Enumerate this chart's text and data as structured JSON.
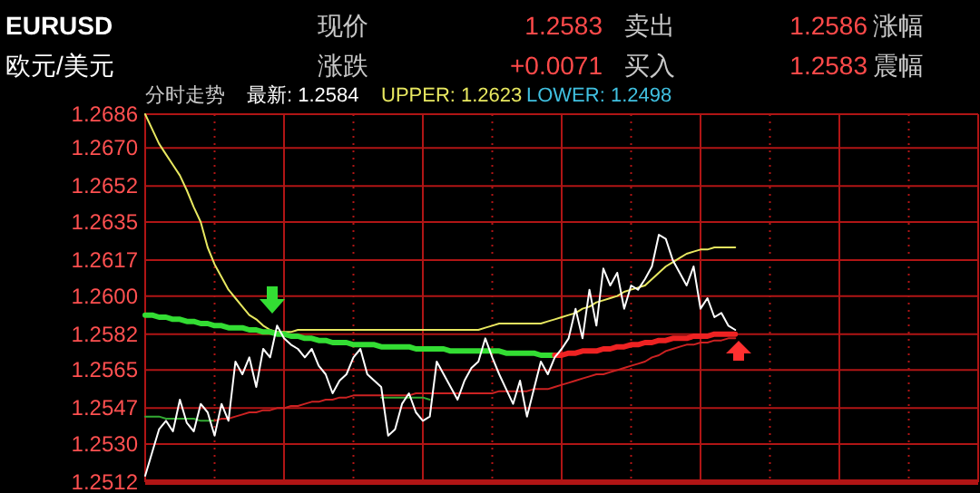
{
  "chart_data": {
    "type": "line",
    "title": "EURUSD",
    "subtitle": "欧元/美元",
    "annotations": [
      "现价",
      "1.2583",
      "卖出",
      "1.2586",
      "涨幅",
      "涨跌",
      "+0.0071",
      "买入",
      "1.2583",
      "震幅",
      "分时走势",
      "最新: 1.2584",
      "UPPER: 1.2623",
      "LOWER: 1.2498"
    ],
    "categories": [
      null,
      null,
      null,
      null,
      null,
      null,
      null,
      null,
      null,
      null,
      null,
      null,
      null,
      null,
      null,
      null,
      null,
      null,
      null,
      null,
      null,
      null,
      null,
      null,
      null,
      null,
      null,
      null,
      null,
      null,
      null,
      null,
      null,
      null,
      null,
      null,
      null,
      null,
      null,
      null,
      null,
      null,
      null,
      null,
      null,
      null,
      null,
      null,
      null,
      null,
      null,
      null,
      null,
      null,
      null,
      null,
      null,
      null,
      null,
      null,
      null,
      null,
      null,
      null,
      null,
      null,
      null,
      null,
      null,
      null,
      null,
      null,
      null,
      null,
      null,
      null,
      null,
      null,
      null,
      null,
      null,
      null,
      null,
      null,
      null,
      null,
      null,
      null,
      null,
      null,
      null,
      null,
      null,
      null,
      null,
      null,
      null,
      null,
      null,
      null,
      null,
      null,
      null,
      null,
      null,
      null,
      null,
      null,
      null,
      null,
      null,
      null,
      null,
      null,
      null,
      null,
      null,
      null,
      null,
      null,
      null
    ],
    "ylim": [
      1.2512,
      1.2686
    ],
    "yticks": [
      {
        "value": 1.2512,
        "label": "1.2512"
      },
      {
        "value": 1.253,
        "label": "1.2530"
      },
      {
        "value": 1.2547,
        "label": "1.2547"
      },
      {
        "value": 1.2565,
        "label": "1.2565"
      },
      {
        "value": 1.2582,
        "label": "1.2582"
      },
      {
        "value": 1.26,
        "label": "1.2600"
      },
      {
        "value": 1.2617,
        "label": "1.2617"
      },
      {
        "value": 1.2635,
        "label": "1.2635"
      },
      {
        "value": 1.2652,
        "label": "1.2652"
      },
      {
        "value": 1.267,
        "label": "1.2670"
      },
      {
        "value": 1.2686,
        "label": "1.2686"
      }
    ],
    "tick_labels": "y",
    "grid": true,
    "marker": "none",
    "line_style": "solid",
    "series": [
      {
        "color": "#e8e860",
        "values": [
          1.2686,
          1.2679,
          1.2672,
          1.2667,
          1.2662,
          1.2657,
          1.265,
          1.2642,
          1.2635,
          1.2623,
          1.2615,
          1.2609,
          1.2603,
          1.2599,
          1.2595,
          1.2591,
          1.2589,
          1.2586,
          1.2584,
          1.2583,
          1.2583,
          1.2583,
          1.2584,
          1.2584,
          1.2584,
          1.2584,
          1.2584,
          1.2584,
          1.2584,
          1.2584,
          1.2584,
          1.2584,
          1.2584,
          1.2584,
          1.2584,
          1.2584,
          1.2584,
          1.2584,
          1.2584,
          1.2584,
          1.2584,
          1.2584,
          1.2584,
          1.2584,
          1.2584,
          1.2584,
          1.2584,
          1.2584,
          1.2584,
          1.2585,
          1.2586,
          1.2587,
          1.2587,
          1.2587,
          1.2587,
          1.2587,
          1.2587,
          1.2587,
          1.2588,
          1.2589,
          1.259,
          1.2591,
          1.2592,
          1.2594,
          1.2595,
          1.2597,
          1.2598,
          1.2599,
          1.26,
          1.2602,
          1.2603,
          1.2604,
          1.2605,
          1.2608,
          1.2611,
          1.2614,
          1.2616,
          1.2618,
          1.262,
          1.2621,
          1.2622,
          1.2622,
          1.2623,
          1.2623,
          1.2623,
          1.2623,
          null,
          null,
          null,
          null,
          null,
          null,
          null,
          null,
          null,
          null,
          null,
          null,
          null,
          null,
          null,
          null,
          null,
          null,
          null,
          null,
          null,
          null,
          null,
          null,
          null,
          null,
          null,
          null,
          null,
          null,
          null,
          null,
          null,
          null,
          null
        ]
      },
      {
        "color": "#33aa33",
        "values": [
          1.2543,
          1.2543,
          1.2543,
          1.2542,
          1.2542,
          1.2542,
          1.2542,
          1.2542,
          1.2541,
          1.2541,
          1.2541,
          null,
          null,
          null,
          null,
          null,
          null,
          null,
          null,
          null,
          null,
          null,
          null,
          null,
          null,
          null,
          null,
          null,
          null,
          null,
          null,
          null,
          null,
          null,
          1.2552,
          1.2552,
          1.2552,
          1.2552,
          1.2552,
          1.2552,
          1.2552,
          1.2551,
          null,
          null,
          null,
          null,
          null,
          null,
          null,
          null,
          null,
          null,
          null,
          null,
          null,
          null,
          null,
          null,
          null,
          null,
          null,
          null,
          null,
          null,
          null,
          null,
          null,
          null,
          null,
          null,
          null,
          null,
          null,
          null,
          null,
          null,
          null,
          null,
          null,
          null,
          null,
          null,
          null,
          null,
          null,
          null,
          null,
          null,
          null,
          null,
          null,
          null,
          null,
          null,
          null,
          null,
          null,
          null,
          null,
          null,
          null,
          null,
          null,
          null,
          null,
          null,
          null,
          null,
          null,
          null,
          null,
          null,
          null,
          null,
          null,
          null,
          null,
          null,
          null,
          null,
          null
        ]
      },
      {
        "color": "#cc2222",
        "values": [
          null,
          null,
          null,
          null,
          null,
          null,
          null,
          null,
          null,
          null,
          1.2541,
          1.2542,
          1.2542,
          1.2543,
          1.2544,
          1.2545,
          1.2545,
          1.2546,
          1.2546,
          1.2547,
          1.2547,
          1.2548,
          1.2548,
          1.2549,
          1.255,
          1.255,
          1.2551,
          1.2551,
          1.2552,
          1.2552,
          1.2553,
          1.2553,
          1.2553,
          1.2553,
          1.2553,
          1.2553,
          1.2553,
          1.2553,
          1.2553,
          1.2554,
          1.2554,
          1.2554,
          1.2554,
          1.2554,
          1.2554,
          1.2554,
          1.2554,
          1.2554,
          1.2554,
          1.2554,
          1.2554,
          1.2555,
          1.2555,
          1.2555,
          1.2555,
          1.2555,
          1.2556,
          1.2556,
          1.2556,
          1.2557,
          1.2558,
          1.2559,
          1.256,
          1.2561,
          1.2562,
          1.2563,
          1.2563,
          1.2564,
          1.2565,
          1.2566,
          1.2567,
          1.2568,
          1.2569,
          1.2571,
          1.2572,
          1.2574,
          1.2575,
          1.2576,
          1.2577,
          1.2577,
          1.2578,
          1.2578,
          1.2579,
          1.2579,
          1.258,
          1.258,
          null,
          null,
          null,
          null,
          null,
          null,
          null,
          null,
          null,
          null,
          null,
          null,
          null,
          null,
          null,
          null,
          null,
          null,
          null,
          null,
          null,
          null,
          null,
          null,
          null,
          null,
          null,
          null,
          null,
          null,
          null,
          null,
          null,
          null,
          null
        ]
      },
      {
        "color": "#33dd33",
        "values": [
          1.2591,
          1.2591,
          1.259,
          1.259,
          1.2589,
          1.2589,
          1.2588,
          1.2588,
          1.2587,
          1.2587,
          1.2586,
          1.2586,
          1.2585,
          1.2585,
          1.2585,
          1.2584,
          1.2584,
          1.2583,
          1.2583,
          1.2582,
          1.2582,
          1.2581,
          1.2581,
          1.258,
          1.258,
          1.2579,
          1.2579,
          1.2578,
          1.2578,
          1.2578,
          1.2577,
          1.2577,
          1.2577,
          1.2577,
          1.2576,
          1.2576,
          1.2576,
          1.2576,
          1.2576,
          1.2575,
          1.2575,
          1.2575,
          1.2575,
          1.2575,
          1.2574,
          1.2574,
          1.2574,
          1.2574,
          1.2574,
          1.2574,
          1.2574,
          1.2574,
          1.2573,
          1.2573,
          1.2573,
          1.2573,
          1.2573,
          1.2572,
          1.2572,
          1.2572,
          null,
          null,
          null,
          null,
          null,
          null,
          null,
          null,
          null,
          null,
          null,
          null,
          null,
          null,
          null,
          null,
          null,
          null,
          null,
          null,
          null,
          null,
          null,
          null,
          null,
          null,
          null,
          null,
          null,
          null,
          null,
          null,
          null,
          null,
          null,
          null,
          null,
          null,
          null,
          null,
          null,
          null,
          null,
          null,
          null,
          null,
          null,
          null,
          null,
          null,
          null,
          null,
          null,
          null,
          null,
          null,
          null,
          null,
          null,
          null,
          null
        ]
      },
      {
        "color": "#ee2222",
        "values": [
          null,
          null,
          null,
          null,
          null,
          null,
          null,
          null,
          null,
          null,
          null,
          null,
          null,
          null,
          null,
          null,
          null,
          null,
          null,
          null,
          null,
          null,
          null,
          null,
          null,
          null,
          null,
          null,
          null,
          null,
          null,
          null,
          null,
          null,
          null,
          null,
          null,
          null,
          null,
          null,
          null,
          null,
          null,
          null,
          null,
          null,
          null,
          null,
          null,
          null,
          null,
          null,
          null,
          null,
          null,
          null,
          null,
          null,
          null,
          1.2572,
          1.2572,
          1.2573,
          1.2573,
          1.2574,
          1.2574,
          1.2574,
          1.2575,
          1.2575,
          1.2576,
          1.2576,
          1.2577,
          1.2577,
          1.2578,
          1.2578,
          1.2579,
          1.2579,
          1.258,
          1.258,
          1.258,
          1.2581,
          1.2581,
          1.2581,
          1.2582,
          1.2582,
          1.2582,
          1.2582,
          null,
          null,
          null,
          null,
          null,
          null,
          null,
          null,
          null,
          null,
          null,
          null,
          null,
          null,
          null,
          null,
          null,
          null,
          null,
          null,
          null,
          null,
          null,
          null,
          null,
          null,
          null,
          null,
          null,
          null,
          null,
          null,
          null,
          null,
          null
        ]
      },
      {
        "color": "#ffffff",
        "values": [
          1.2515,
          1.2526,
          1.2537,
          1.2541,
          1.2536,
          1.2551,
          1.254,
          1.2536,
          1.2549,
          1.2545,
          1.2534,
          1.2549,
          1.2541,
          1.2569,
          1.2563,
          1.2571,
          1.2557,
          1.2575,
          1.2571,
          1.2586,
          1.258,
          1.2577,
          1.2575,
          1.2571,
          1.2575,
          1.2567,
          1.2563,
          1.2554,
          1.256,
          1.2563,
          1.2571,
          1.2575,
          1.2563,
          1.256,
          1.2557,
          1.2534,
          1.2537,
          1.2549,
          1.2554,
          1.2545,
          1.2541,
          1.2543,
          1.2569,
          1.2563,
          1.2557,
          1.2551,
          1.256,
          1.2566,
          1.2569,
          1.258,
          1.2571,
          1.2563,
          1.2556,
          1.2549,
          1.256,
          1.2543,
          1.2556,
          1.2569,
          1.2563,
          1.2571,
          1.2575,
          1.258,
          1.2594,
          1.258,
          1.2603,
          1.2586,
          1.2613,
          1.2605,
          1.2611,
          1.2594,
          1.2605,
          1.2603,
          1.2608,
          1.2614,
          1.2629,
          1.2627,
          1.2617,
          1.2611,
          1.2605,
          1.2614,
          1.2594,
          1.2599,
          1.259,
          1.2592,
          1.2586,
          1.2584,
          null,
          null,
          null,
          null,
          null,
          null,
          null,
          null,
          null,
          null,
          null,
          null,
          null,
          null,
          null,
          null,
          null,
          null,
          null,
          null,
          null,
          null,
          null,
          null,
          null,
          null,
          null,
          null,
          null,
          null,
          null,
          null,
          null,
          null,
          null
        ]
      }
    ]
  }
}
